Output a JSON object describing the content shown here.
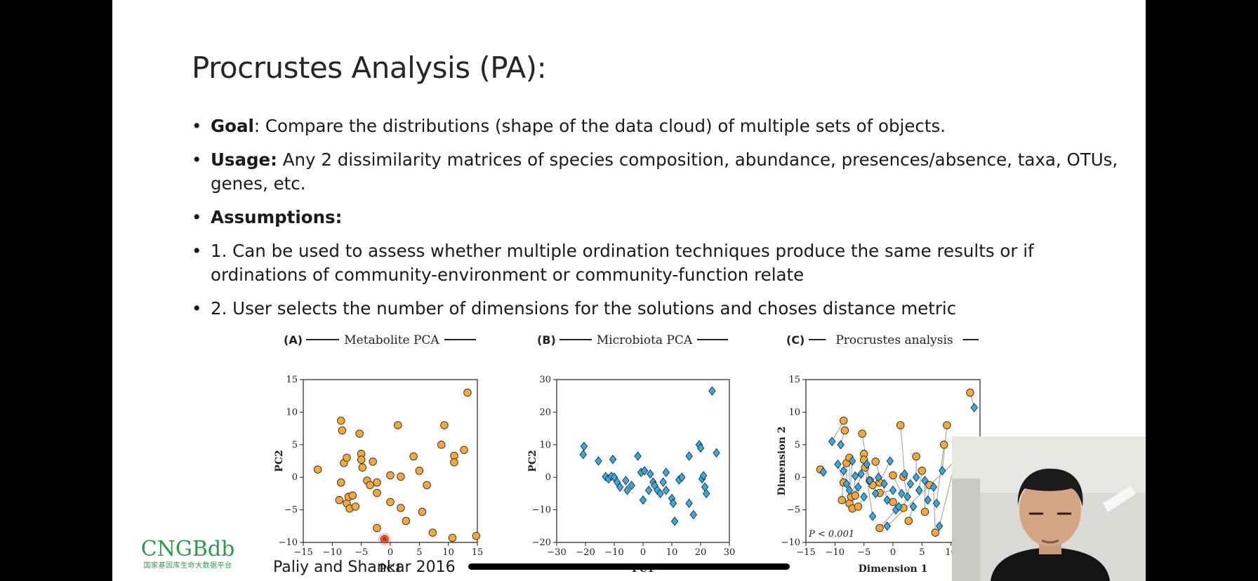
{
  "slide": {
    "title": "Procrustes Analysis (PA):",
    "bullets": [
      {
        "bold": "Goal",
        "text": ": Compare the distributions (shape of the data cloud) of multiple sets of objects."
      },
      {
        "bold": "Usage:",
        "text": " Any 2 dissimilarity matrices of species composition, abundance, presences/absence, taxa, OTUs, genes, etc."
      },
      {
        "bold": "Assumptions:",
        "text": ""
      },
      {
        "bold": "",
        "text": "1. Can be used to assess whether multiple ordination techniques produce the same results or if ordinations of community-environment or community-function relate"
      },
      {
        "bold": "",
        "text": "2. User selects the number of dimensions for the solutions and choses distance metric"
      }
    ],
    "citation": "Paliy and Shankar 2016"
  },
  "logo": {
    "name": "CNGBdb",
    "subtitle": "国家基因库生命大数据平台"
  },
  "colors": {
    "metabolite": "#f0a842",
    "microbiota": "#3fa6d6",
    "logo_green": "#2e9a4c"
  },
  "chart_data": [
    {
      "type": "scatter",
      "label": "(A)",
      "title": "Metabolite PCA",
      "xlabel": "PC1",
      "ylabel": "PC2",
      "xlim": [
        -15,
        15
      ],
      "ylim": [
        -10,
        15
      ],
      "xticks": [
        -15,
        -10,
        -5,
        0,
        5,
        10,
        15
      ],
      "yticks": [
        -10,
        -5,
        0,
        5,
        10,
        15
      ],
      "marker": "circle",
      "points": [
        [
          -12.5,
          1.2
        ],
        [
          -8.5,
          8.7
        ],
        [
          -8.3,
          7.2
        ],
        [
          -8.5,
          -0.8
        ],
        [
          -8.8,
          -3.5
        ],
        [
          -8.0,
          2.2
        ],
        [
          -7.5,
          3.0
        ],
        [
          -7.5,
          -4.0
        ],
        [
          -7.0,
          -4.8
        ],
        [
          -7.2,
          -3.0
        ],
        [
          -6.5,
          -2.8
        ],
        [
          -6.0,
          -4.5
        ],
        [
          -5.3,
          6.7
        ],
        [
          -5.0,
          3.6
        ],
        [
          -5.0,
          2.7
        ],
        [
          -4.8,
          1.5
        ],
        [
          -4.0,
          -0.5
        ],
        [
          -3.5,
          -1.2
        ],
        [
          -3.0,
          2.4
        ],
        [
          -2.3,
          -0.8
        ],
        [
          -2.3,
          -2.4
        ],
        [
          -2.3,
          -7.8
        ],
        [
          -1.0,
          -9.5
        ],
        [
          0.0,
          -3.8
        ],
        [
          0.0,
          0.3
        ],
        [
          1.3,
          8.0
        ],
        [
          1.8,
          0.1
        ],
        [
          1.8,
          -4.7
        ],
        [
          2.7,
          -6.7
        ],
        [
          4.0,
          3.2
        ],
        [
          5.0,
          1.0
        ],
        [
          5.5,
          -5.3
        ],
        [
          6.3,
          -1.2
        ],
        [
          7.3,
          -8.5
        ],
        [
          8.8,
          5.0
        ],
        [
          9.3,
          8.0
        ],
        [
          10.7,
          -9.3
        ],
        [
          11.0,
          3.3
        ],
        [
          11.0,
          2.3
        ],
        [
          12.7,
          4.2
        ],
        [
          13.3,
          13.0
        ],
        [
          14.8,
          -9.0
        ]
      ]
    },
    {
      "type": "scatter",
      "label": "(B)",
      "title": "Microbiota PCA",
      "xlabel": "PC1",
      "ylabel": "PC2",
      "xlim": [
        -30,
        30
      ],
      "ylim": [
        -20,
        30
      ],
      "xticks": [
        -30,
        -20,
        -10,
        0,
        10,
        20,
        30
      ],
      "yticks": [
        -20,
        -10,
        0,
        10,
        20,
        30
      ],
      "marker": "diamond",
      "points": [
        [
          -20.5,
          9.5
        ],
        [
          -20.8,
          7.0
        ],
        [
          -15.5,
          5.0
        ],
        [
          -13.0,
          0.2
        ],
        [
          -12.0,
          -0.5
        ],
        [
          -11.0,
          0.3
        ],
        [
          -10.5,
          5.5
        ],
        [
          -10.0,
          0.0
        ],
        [
          -9.0,
          -1.5
        ],
        [
          -8.0,
          -3.0
        ],
        [
          -6.0,
          -1.0
        ],
        [
          -5.5,
          -4.0
        ],
        [
          -4.0,
          -2.5
        ],
        [
          -1.8,
          6.5
        ],
        [
          -0.7,
          1.5
        ],
        [
          0.0,
          -7.0
        ],
        [
          0.5,
          2.0
        ],
        [
          2.0,
          -4.0
        ],
        [
          2.5,
          1.0
        ],
        [
          3.5,
          -1.5
        ],
        [
          4.0,
          -2.5
        ],
        [
          5.0,
          -4.0
        ],
        [
          6.0,
          -5.0
        ],
        [
          7.0,
          -1.5
        ],
        [
          8.0,
          1.5
        ],
        [
          8.0,
          -4.0
        ],
        [
          10.0,
          -6.5
        ],
        [
          10.5,
          -8.0
        ],
        [
          11.0,
          -13.5
        ],
        [
          12.5,
          -0.8
        ],
        [
          13.5,
          0.0
        ],
        [
          16.0,
          6.5
        ],
        [
          16.0,
          -8.0
        ],
        [
          17.5,
          -11.5
        ],
        [
          19.5,
          10.0
        ],
        [
          20.0,
          9.0
        ],
        [
          20.5,
          -0.5
        ],
        [
          21.0,
          0.5
        ],
        [
          21.5,
          -3.0
        ],
        [
          22.0,
          -5.0
        ],
        [
          24.0,
          26.5
        ],
        [
          25.5,
          7.5
        ]
      ]
    },
    {
      "type": "scatter",
      "label": "(C)",
      "title": "Procrustes analysis",
      "xlabel": "Dimension 1",
      "ylabel": "Dimension 2",
      "annotation": "P < 0.001",
      "xlim": [
        -15,
        15
      ],
      "ylim": [
        -10,
        15
      ],
      "xticks": [
        -15,
        -10,
        -5,
        0,
        5,
        10
      ],
      "yticks": [
        -10,
        -5,
        0,
        5,
        10,
        15
      ],
      "series": [
        {
          "marker": "circle",
          "points": [
            [
              -12.5,
              1.2
            ],
            [
              -8.5,
              8.7
            ],
            [
              -8.3,
              7.2
            ],
            [
              -8.5,
              -0.8
            ],
            [
              -8.8,
              -3.5
            ],
            [
              -8.0,
              2.2
            ],
            [
              -7.5,
              3.0
            ],
            [
              -7.5,
              -4.0
            ],
            [
              -7.0,
              -4.8
            ],
            [
              -7.2,
              -3.0
            ],
            [
              -6.5,
              -2.8
            ],
            [
              -6.0,
              -4.5
            ],
            [
              -5.3,
              6.7
            ],
            [
              -5.0,
              3.6
            ],
            [
              -5.0,
              2.7
            ],
            [
              -4.8,
              1.5
            ],
            [
              -4.0,
              -0.5
            ],
            [
              -3.5,
              -1.2
            ],
            [
              -3.0,
              2.4
            ],
            [
              -2.3,
              -0.8
            ],
            [
              -2.3,
              -2.4
            ],
            [
              -2.3,
              -7.8
            ],
            [
              0.0,
              -3.8
            ],
            [
              0.0,
              0.3
            ],
            [
              1.3,
              8.0
            ],
            [
              1.8,
              0.1
            ],
            [
              1.8,
              -4.7
            ],
            [
              2.7,
              -6.7
            ],
            [
              4.0,
              3.2
            ],
            [
              5.0,
              1.0
            ],
            [
              5.5,
              -5.3
            ],
            [
              6.3,
              -1.2
            ],
            [
              7.3,
              -8.5
            ],
            [
              8.8,
              5.0
            ],
            [
              9.3,
              8.0
            ],
            [
              11.0,
              3.3
            ],
            [
              12.7,
              4.2
            ],
            [
              13.3,
              13.0
            ]
          ]
        },
        {
          "marker": "diamond",
          "points": [
            [
              -12.0,
              0.8
            ],
            [
              -10.5,
              5.5
            ],
            [
              -9.0,
              5.0
            ],
            [
              -9.5,
              2.0
            ],
            [
              -8.5,
              1.0
            ],
            [
              -8.0,
              -1.0
            ],
            [
              -7.5,
              -2.0
            ],
            [
              -7.0,
              2.5
            ],
            [
              -6.5,
              0.2
            ],
            [
              -6.0,
              -1.5
            ],
            [
              -5.5,
              0.5
            ],
            [
              -5.0,
              -3.0
            ],
            [
              -4.5,
              2.0
            ],
            [
              -4.0,
              -0.5
            ],
            [
              -3.5,
              -6.0
            ],
            [
              -3.0,
              -2.5
            ],
            [
              -2.5,
              0.0
            ],
            [
              -1.5,
              -1.0
            ],
            [
              -1.0,
              -3.5
            ],
            [
              -0.5,
              2.5
            ],
            [
              0.0,
              -2.0
            ],
            [
              0.5,
              -5.0
            ],
            [
              1.0,
              -4.5
            ],
            [
              1.5,
              -2.5
            ],
            [
              2.0,
              0.5
            ],
            [
              2.5,
              -3.0
            ],
            [
              3.0,
              -1.0
            ],
            [
              3.5,
              -4.5
            ],
            [
              4.0,
              0.0
            ],
            [
              4.5,
              -2.0
            ],
            [
              5.5,
              -0.5
            ],
            [
              6.0,
              -3.5
            ],
            [
              7.0,
              -1.5
            ],
            [
              7.5,
              -4.0
            ],
            [
              8.5,
              1.0
            ],
            [
              8.0,
              -7.5
            ],
            [
              -1.0,
              -7.5
            ],
            [
              14.0,
              10.7
            ]
          ]
        }
      ]
    }
  ]
}
